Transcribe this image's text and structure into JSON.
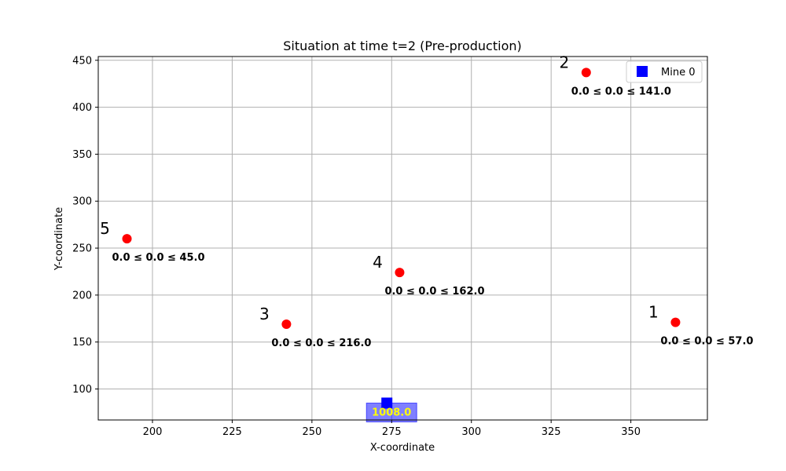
{
  "chart_data": {
    "type": "scatter",
    "title": "Situation at time t=2 (Pre-production)",
    "xlabel": "X-coordinate",
    "ylabel": "Y-coordinate",
    "xlim": [
      183,
      374
    ],
    "ylim": [
      67,
      454
    ],
    "xticks": [
      200,
      225,
      250,
      275,
      300,
      325,
      350
    ],
    "yticks": [
      100,
      150,
      200,
      250,
      300,
      350,
      400,
      450
    ],
    "grid": true,
    "legend": {
      "placement": "top-right",
      "entries": [
        {
          "label": "Mine 0",
          "marker": "square",
          "color": "#0000ff"
        }
      ]
    },
    "points": [
      {
        "id": "1",
        "x": 364,
        "y": 171,
        "label": "0.0 ≤ 0.0 ≤ 57.0",
        "color": "#ff0000"
      },
      {
        "id": "2",
        "x": 336,
        "y": 437,
        "label": "0.0 ≤ 0.0 ≤ 141.0",
        "color": "#ff0000"
      },
      {
        "id": "3",
        "x": 242,
        "y": 169,
        "label": "0.0 ≤ 0.0 ≤ 216.0",
        "color": "#ff0000"
      },
      {
        "id": "4",
        "x": 277.5,
        "y": 224,
        "label": "0.0 ≤ 0.0 ≤ 162.0",
        "color": "#ff0000"
      },
      {
        "id": "5",
        "x": 192,
        "y": 260,
        "label": "0.0 ≤ 0.0 ≤ 45.0",
        "color": "#ff0000"
      }
    ],
    "mines": [
      {
        "name": "Mine 0",
        "x": 273.5,
        "y": 85,
        "value": "1008.0",
        "color": "#0000ff",
        "label_color": "#ffff00",
        "box_color": "#0000ff"
      }
    ]
  }
}
